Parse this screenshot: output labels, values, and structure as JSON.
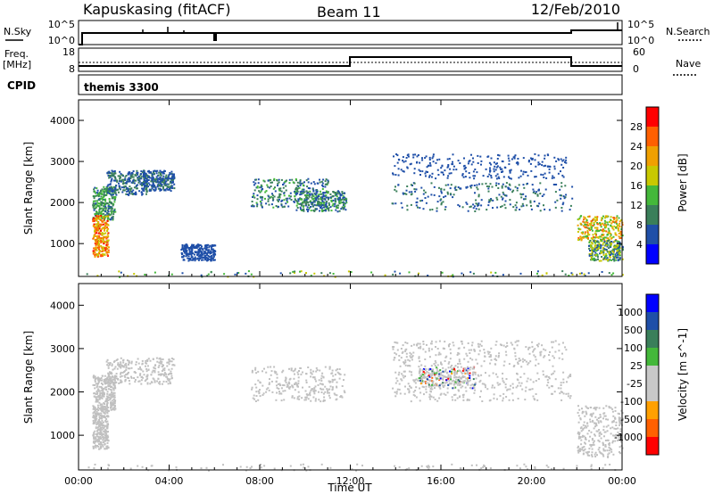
{
  "header": {
    "site": "Kapuskasing (fitACF)",
    "beam": "Beam 11",
    "date": "12/Feb/2010"
  },
  "top_panels": {
    "sky_label": "N.Sky",
    "sky_ticks": [
      "10^5",
      "10^0"
    ],
    "search_label": "N.Search",
    "search_ticks": [
      "10^5",
      "10^0"
    ],
    "freq_label_1": "Freq.",
    "freq_label_2": "[MHz]",
    "freq_ticks": [
      "18",
      "8"
    ],
    "nave_label": "Nave",
    "nave_ticks": [
      "60",
      "0"
    ],
    "cpid_label": "CPID",
    "cpid_value": "themis 3300"
  },
  "colors": {
    "power": [
      "#0000ff",
      "#1f4fa8",
      "#3a7f5a",
      "#44b83a",
      "#c8c800",
      "#f0a000",
      "#ff6000",
      "#ff0000"
    ],
    "velocity": [
      "#ff0000",
      "#ff6000",
      "#ffa000",
      "#c8c8c8",
      "#c8c8c8",
      "#44b83a",
      "#3a7f5a",
      "#1f4fa8",
      "#0000ff"
    ],
    "ground_scatter": "#c0c0c0"
  },
  "chart_data": [
    {
      "type": "heatmap",
      "name": "power",
      "xlabel": "",
      "ylabel": "Slant Range [km]",
      "x_ticks": [
        "00:00",
        "04:00",
        "08:00",
        "12:00",
        "16:00",
        "20:00",
        "00:00"
      ],
      "xlim": [
        0,
        24
      ],
      "ylim": [
        200,
        4500
      ],
      "y_ticks": [
        1000,
        2000,
        3000,
        4000
      ],
      "colorbar_label": "Power [dB]",
      "colorbar_ticks": [
        4,
        8,
        12,
        16,
        20,
        24,
        28
      ],
      "colorbar_range": [
        0,
        30
      ],
      "regions": [
        {
          "t": [
            0.6,
            1.6
          ],
          "r": [
            1600,
            2400
          ],
          "v": [
            6,
            16
          ]
        },
        {
          "t": [
            0.6,
            1.3
          ],
          "r": [
            700,
            1700
          ],
          "v": [
            16,
            30
          ]
        },
        {
          "t": [
            1.2,
            3.0
          ],
          "r": [
            2200,
            2800
          ],
          "v": [
            4,
            12
          ]
        },
        {
          "t": [
            2.8,
            4.2
          ],
          "r": [
            2300,
            2800
          ],
          "v": [
            4,
            10
          ]
        },
        {
          "t": [
            4.5,
            6.0
          ],
          "r": [
            600,
            1000
          ],
          "v": [
            4,
            8
          ]
        },
        {
          "t": [
            7.6,
            11.0
          ],
          "r": [
            1900,
            2600
          ],
          "v": [
            4,
            14
          ]
        },
        {
          "t": [
            9.5,
            11.8
          ],
          "r": [
            1800,
            2300
          ],
          "v": [
            4,
            16
          ]
        },
        {
          "t": [
            13.8,
            21.8
          ],
          "r": [
            1800,
            2500
          ],
          "v": [
            4,
            12
          ]
        },
        {
          "t": [
            13.8,
            21.5
          ],
          "r": [
            2600,
            3200
          ],
          "v": [
            4,
            8
          ]
        },
        {
          "t": [
            22.0,
            24.0
          ],
          "r": [
            1100,
            1700
          ],
          "v": [
            12,
            28
          ]
        },
        {
          "t": [
            22.5,
            24.0
          ],
          "r": [
            600,
            1100
          ],
          "v": [
            4,
            20
          ]
        },
        {
          "t": [
            0.0,
            24.0
          ],
          "r": [
            200,
            350
          ],
          "v": [
            4,
            20
          ]
        }
      ]
    },
    {
      "type": "heatmap",
      "name": "velocity",
      "xlabel": "Time UT",
      "ylabel": "Slant Range [km]",
      "x_ticks": [
        "00:00",
        "04:00",
        "08:00",
        "12:00",
        "16:00",
        "20:00",
        "00:00"
      ],
      "xlim": [
        0,
        24
      ],
      "ylim": [
        200,
        4500
      ],
      "y_ticks": [
        1000,
        2000,
        3000,
        4000
      ],
      "colorbar_label": "Velocity [m s^-1]",
      "colorbar_ticks": [
        "-1000",
        "-500",
        "-100",
        "-25",
        "25",
        "100",
        "500",
        "1000"
      ],
      "regions": [
        {
          "t": [
            0.6,
            1.6
          ],
          "r": [
            1600,
            2400
          ],
          "v": "ground"
        },
        {
          "t": [
            0.6,
            1.3
          ],
          "r": [
            700,
            1700
          ],
          "v": "ground"
        },
        {
          "t": [
            1.2,
            4.2
          ],
          "r": [
            2200,
            2800
          ],
          "v": "ground"
        },
        {
          "t": [
            7.6,
            11.8
          ],
          "r": [
            1800,
            2600
          ],
          "v": "ground"
        },
        {
          "t": [
            13.8,
            21.8
          ],
          "r": [
            1800,
            2500
          ],
          "v": "ground"
        },
        {
          "t": [
            13.8,
            21.5
          ],
          "r": [
            2600,
            3200
          ],
          "v": "ground"
        },
        {
          "t": [
            15.0,
            17.5
          ],
          "r": [
            2100,
            2600
          ],
          "v": "mixed"
        },
        {
          "t": [
            22.0,
            24.0
          ],
          "r": [
            500,
            1700
          ],
          "v": "ground"
        },
        {
          "t": [
            0.0,
            24.0
          ],
          "r": [
            200,
            350
          ],
          "v": "ground"
        }
      ]
    }
  ]
}
